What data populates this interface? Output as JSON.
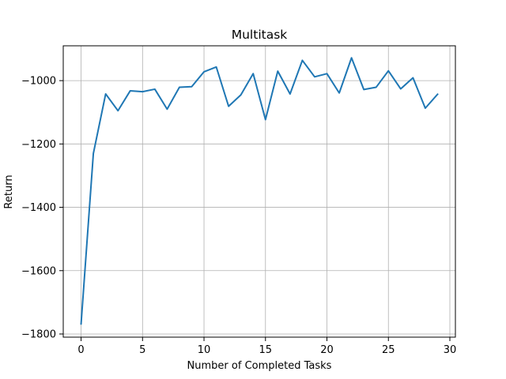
{
  "chart_data": {
    "type": "line",
    "title": "Multitask",
    "xlabel": "Number of Completed Tasks",
    "ylabel": "Return",
    "xlim": [
      -1.45,
      30.45
    ],
    "ylim": [
      -1810,
      -890
    ],
    "xticks": [
      0,
      5,
      10,
      15,
      20,
      25,
      30
    ],
    "xtick_labels": [
      "0",
      "5",
      "10",
      "15",
      "20",
      "25",
      "30"
    ],
    "yticks": [
      -1800,
      -1600,
      -1400,
      -1200,
      -1000
    ],
    "ytick_labels": [
      "−1800",
      "−1600",
      "−1400",
      "−1200",
      "−1000"
    ],
    "grid": true,
    "line_color": "#1f77b4",
    "x": [
      0,
      1,
      2,
      3,
      4,
      5,
      6,
      7,
      8,
      9,
      10,
      11,
      12,
      13,
      14,
      15,
      16,
      17,
      18,
      19,
      20,
      21,
      22,
      23,
      24,
      25,
      26,
      27,
      28,
      29
    ],
    "series": [
      {
        "values": [
          -1768,
          -1230,
          -1042,
          -1095,
          -1032,
          -1035,
          -1027,
          -1090,
          -1021,
          -1019,
          -972,
          -957,
          -1081,
          -1045,
          -978,
          -1123,
          -970,
          -1042,
          -936,
          -988,
          -978,
          -1039,
          -928,
          -1028,
          -1021,
          -969,
          -1026,
          -991,
          -1087,
          -1043
        ]
      }
    ]
  }
}
